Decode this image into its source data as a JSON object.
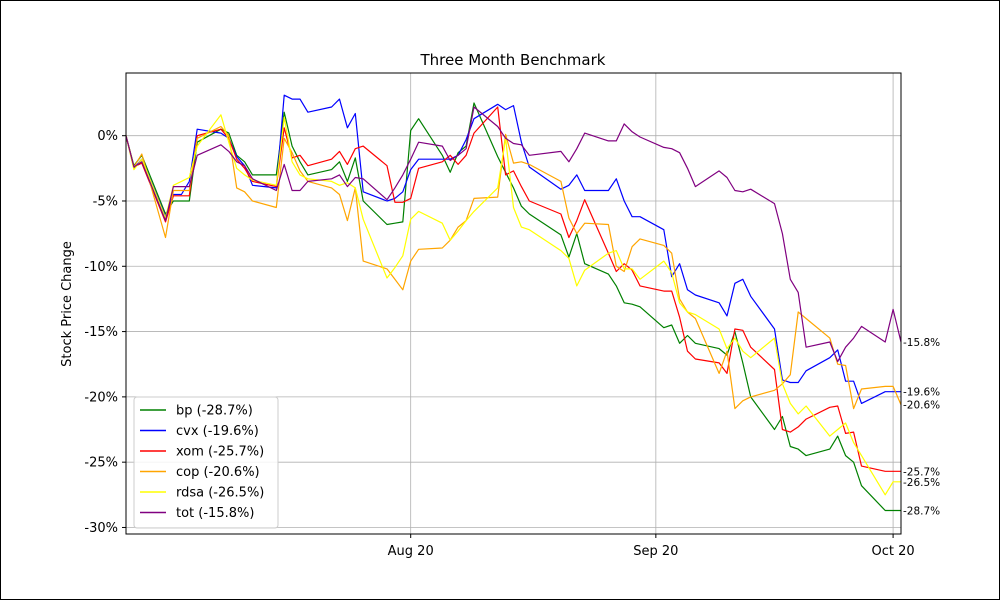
{
  "chart_data": {
    "type": "line",
    "title": "Three Month Benchmark",
    "xlabel": "",
    "ylabel": "Stock Price Change",
    "ylim": [
      -30.5,
      4.8
    ],
    "y_ticks": [
      0,
      -5,
      -10,
      -15,
      -20,
      -25,
      -30
    ],
    "y_tick_labels": [
      "0%",
      "-5%",
      "-10%",
      "-15%",
      "-20%",
      "-25%",
      "-30%"
    ],
    "x_ticks": [
      "Aug 20",
      "Sep 20",
      "Oct 20"
    ],
    "grid": true,
    "legend_position": "lower-left",
    "trading_days": [
      "2020-07-15",
      "2020-07-16",
      "2020-07-17",
      "2020-07-20",
      "2020-07-21",
      "2020-07-22",
      "2020-07-23",
      "2020-07-24",
      "2020-07-27",
      "2020-07-28",
      "2020-07-29",
      "2020-07-30",
      "2020-07-31",
      "2020-08-03",
      "2020-08-04",
      "2020-08-05",
      "2020-08-06",
      "2020-08-07",
      "2020-08-10",
      "2020-08-11",
      "2020-08-12",
      "2020-08-13",
      "2020-08-14",
      "2020-08-17",
      "2020-08-18",
      "2020-08-19",
      "2020-08-20",
      "2020-08-21",
      "2020-08-24",
      "2020-08-25",
      "2020-08-26",
      "2020-08-27",
      "2020-08-28",
      "2020-08-31",
      "2020-09-01",
      "2020-09-02",
      "2020-09-03",
      "2020-09-04",
      "2020-09-08",
      "2020-09-09",
      "2020-09-10",
      "2020-09-11",
      "2020-09-14",
      "2020-09-15",
      "2020-09-16",
      "2020-09-17",
      "2020-09-18",
      "2020-09-21",
      "2020-09-22",
      "2020-09-23",
      "2020-09-24",
      "2020-09-25",
      "2020-09-28",
      "2020-09-29",
      "2020-09-30",
      "2020-10-01",
      "2020-10-02",
      "2020-10-05",
      "2020-10-06",
      "2020-10-07",
      "2020-10-08",
      "2020-10-09",
      "2020-10-12",
      "2020-10-13",
      "2020-10-14",
      "2020-10-15",
      "2020-10-16",
      "2020-10-19",
      "2020-10-20",
      "2020-10-21"
    ],
    "x_domain": [
      "2020-07-15",
      "2020-10-21"
    ],
    "series": [
      {
        "name": "bp (-28.7%)",
        "end_label": "-28.7%",
        "color": "#008000",
        "values": [
          0,
          -2.3,
          -1.5,
          -6.0,
          -5.0,
          -5.0,
          -5.0,
          -0.5,
          0.5,
          0.2,
          -1.5,
          -2.0,
          -3.0,
          -3.0,
          1.8,
          -0.8,
          -2.0,
          -3.0,
          -2.6,
          -2.0,
          -3.5,
          -1.7,
          -5.0,
          -6.8,
          -6.7,
          -6.6,
          0.4,
          1.3,
          -1.5,
          -2.8,
          -1.3,
          -0.8,
          2.5,
          -1.6,
          -2.8,
          -4.0,
          -5.4,
          -6.0,
          -7.6,
          -9.3,
          -7.5,
          -9.8,
          -10.6,
          -11.5,
          -12.8,
          -12.9,
          -13.1,
          -14.7,
          -14.5,
          -15.9,
          -15.3,
          -15.9,
          -16.3,
          -16.8,
          -15.0,
          -17.4,
          -20.0,
          -22.5,
          -21.5,
          -23.8,
          -24.0,
          -24.5,
          -24.0,
          -23.0,
          -24.5,
          -25.0,
          -26.8,
          -28.7,
          -28.7,
          -28.7
        ]
      },
      {
        "name": "cvx (-19.6%)",
        "end_label": "-19.6%",
        "color": "#0000ff",
        "values": [
          0,
          -2.5,
          -1.8,
          -6.2,
          -4.5,
          -4.5,
          -3.5,
          0.5,
          0.2,
          -0.2,
          -1.6,
          -2.3,
          -3.8,
          -4.0,
          3.1,
          2.8,
          2.8,
          1.8,
          2.2,
          2.8,
          0.6,
          1.7,
          -4.3,
          -5.0,
          -4.8,
          -4.3,
          -2.6,
          -1.8,
          -1.8,
          -1.8,
          -1.5,
          -0.3,
          1.3,
          2.4,
          2.0,
          2.3,
          -0.5,
          -2.4,
          -4.1,
          -3.8,
          -3.0,
          -4.2,
          -4.2,
          -3.3,
          -5.0,
          -6.2,
          -6.2,
          -7.2,
          -10.8,
          -9.8,
          -11.8,
          -12.2,
          -12.8,
          -13.8,
          -11.3,
          -11.0,
          -12.3,
          -14.8,
          -18.7,
          -18.9,
          -18.9,
          -18.0,
          -17.0,
          -16.4,
          -18.8,
          -18.8,
          -20.5,
          -19.6,
          -19.6,
          -19.6
        ]
      },
      {
        "name": "xom (-25.7%)",
        "end_label": "-25.7%",
        "color": "#ff0000",
        "values": [
          0,
          -2.4,
          -2.1,
          -6.6,
          -4.6,
          -4.6,
          -4.6,
          0.0,
          0.5,
          -0.2,
          -1.8,
          -2.5,
          -3.5,
          -3.9,
          0.6,
          -1.7,
          -1.5,
          -2.3,
          -1.8,
          -1.2,
          -2.2,
          -1.0,
          -0.8,
          -2.3,
          -5.1,
          -5.1,
          -4.8,
          -2.5,
          -2.0,
          -1.5,
          -2.2,
          -1.5,
          0.2,
          2.2,
          -3.0,
          -2.7,
          -3.9,
          -5.0,
          -6.0,
          -7.8,
          -6.5,
          -4.9,
          -9.0,
          -10.4,
          -9.8,
          -10.3,
          -11.5,
          -11.9,
          -11.9,
          -13.9,
          -16.5,
          -17.1,
          -17.4,
          -18.2,
          -14.8,
          -14.9,
          -16.2,
          -17.9,
          -22.5,
          -22.7,
          -22.3,
          -21.7,
          -20.8,
          -20.7,
          -22.8,
          -22.7,
          -25.3,
          -25.7,
          -25.7,
          -25.7
        ]
      },
      {
        "name": "cop (-20.6%)",
        "end_label": "-20.6%",
        "color": "#ffa500",
        "values": [
          0,
          -2.4,
          -1.4,
          -7.8,
          -4.2,
          -4.2,
          -4.2,
          -0.2,
          0.7,
          0.0,
          -4.0,
          -4.3,
          -5.0,
          -5.5,
          -0.2,
          -1.3,
          -2.7,
          -3.5,
          -4.0,
          -4.5,
          -6.5,
          -4.0,
          -9.6,
          -10.2,
          -11.0,
          -11.8,
          -9.6,
          -8.7,
          -8.6,
          -8.0,
          -7.0,
          -6.5,
          -4.8,
          -4.7,
          0.1,
          -2.1,
          -2.0,
          -2.2,
          -3.5,
          -6.3,
          -7.5,
          -6.7,
          -6.8,
          -10.0,
          -10.4,
          -8.5,
          -7.9,
          -8.4,
          -9.0,
          -12.5,
          -13.5,
          -14.0,
          -18.2,
          -16.5,
          -20.9,
          -20.3,
          -20.0,
          -19.5,
          -19.0,
          -18.3,
          -13.5,
          -14.0,
          -15.5,
          -17.5,
          -17.6,
          -20.9,
          -19.4,
          -19.2,
          -19.2,
          -20.6
        ]
      },
      {
        "name": "rdsa (-26.5%)",
        "end_label": "-26.5%",
        "color": "#ffff00",
        "values": [
          0,
          -2.6,
          -1.8,
          -6.3,
          -3.8,
          -3.5,
          -3.2,
          -0.8,
          1.6,
          -0.5,
          -2.5,
          -3.0,
          -3.4,
          -3.8,
          1.4,
          -2.0,
          -3.0,
          -3.3,
          -3.5,
          -3.8,
          -3.6,
          -4.0,
          -6.4,
          -10.9,
          -10.1,
          -9.2,
          -6.4,
          -5.8,
          -6.7,
          -8.0,
          -7.3,
          -6.5,
          -5.8,
          -4.0,
          -0.2,
          -5.5,
          -7.0,
          -7.2,
          -8.8,
          -9.4,
          -11.5,
          -10.3,
          -9.0,
          -8.8,
          -10.2,
          -10.2,
          -11.0,
          -9.6,
          -10.5,
          -12.8,
          -13.5,
          -13.7,
          -14.8,
          -16.3,
          -15.5,
          -16.5,
          -17.0,
          -15.5,
          -19.0,
          -20.5,
          -21.3,
          -20.7,
          -23.0,
          -22.5,
          -22.0,
          -23.5,
          -24.5,
          -27.5,
          -26.5,
          -26.5
        ]
      },
      {
        "name": "tot (-15.8%)",
        "end_label": "-15.8%",
        "color": "#800080",
        "values": [
          0,
          -2.4,
          -2.0,
          -6.5,
          -3.9,
          -3.9,
          -3.9,
          -1.5,
          -0.7,
          -1.2,
          -2.0,
          -2.3,
          -3.3,
          -4.2,
          -2.2,
          -4.2,
          -4.2,
          -3.5,
          -3.3,
          -3.0,
          -3.9,
          -3.2,
          -3.3,
          -4.9,
          -4.0,
          -3.0,
          -1.8,
          -0.5,
          -0.8,
          -1.9,
          -1.5,
          -1.0,
          2.2,
          0.7,
          -0.2,
          -0.6,
          -0.7,
          -1.5,
          -1.2,
          -2.0,
          -1.0,
          0.2,
          -0.4,
          -0.4,
          0.9,
          0.3,
          -0.1,
          -0.9,
          -1.0,
          -1.3,
          -2.5,
          -3.9,
          -2.7,
          -3.2,
          -4.2,
          -4.3,
          -4.1,
          -5.2,
          -7.5,
          -11.0,
          -12.0,
          -16.2,
          -15.8,
          -17.3,
          -16.2,
          -15.5,
          -14.6,
          -15.8,
          -13.3,
          -15.8
        ]
      }
    ]
  }
}
